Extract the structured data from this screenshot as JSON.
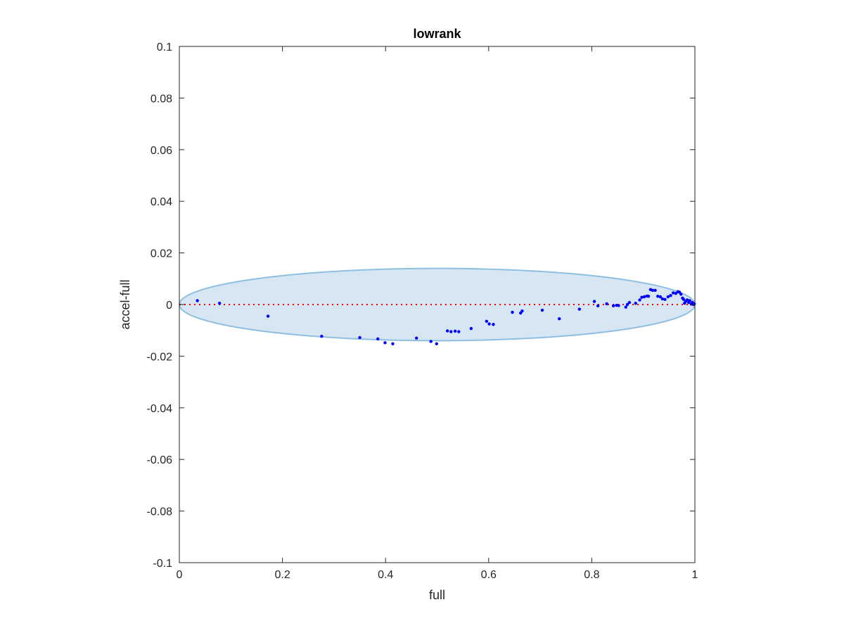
{
  "chart_data": {
    "type": "scatter",
    "title": "lowrank",
    "xlabel": "full",
    "ylabel": "accel-full",
    "xlim": [
      0,
      1
    ],
    "ylim": [
      -0.1,
      0.1
    ],
    "x_ticks": [
      0,
      0.2,
      0.4,
      0.6,
      0.8,
      1
    ],
    "x_tick_labels": [
      "0",
      "0.2",
      "0.4",
      "0.6",
      "0.8",
      "1"
    ],
    "y_ticks": [
      -0.1,
      -0.08,
      -0.06,
      -0.04,
      -0.02,
      0,
      0.02,
      0.04,
      0.06,
      0.08,
      0.1
    ],
    "y_tick_labels": [
      "-0.1",
      "-0.08",
      "-0.06",
      "-0.04",
      "-0.02",
      "0",
      "0.02",
      "0.04",
      "0.06",
      "0.08",
      "0.1"
    ],
    "grid": false,
    "legend": "none",
    "reference_line": {
      "y": 0,
      "style": "dotted",
      "color": "#ff0000"
    },
    "ellipse": {
      "cx": 0.5,
      "cy": 0.0,
      "rx": 0.5,
      "ry": 0.014,
      "fill": "#d6e6f3",
      "stroke": "#8fbfe0"
    },
    "series": [
      {
        "color": "#0000ff",
        "points": [
          [
            0.035,
            0.0015
          ],
          [
            0.078,
            0.0005
          ],
          [
            0.172,
            -0.0045
          ],
          [
            0.276,
            -0.0123
          ],
          [
            0.35,
            -0.0128
          ],
          [
            0.385,
            -0.0133
          ],
          [
            0.399,
            -0.0148
          ],
          [
            0.414,
            -0.0152
          ],
          [
            0.46,
            -0.013
          ],
          [
            0.488,
            -0.0143
          ],
          [
            0.499,
            -0.0152
          ],
          [
            0.52,
            -0.0102
          ],
          [
            0.527,
            -0.0105
          ],
          [
            0.535,
            -0.0103
          ],
          [
            0.542,
            -0.0105
          ],
          [
            0.566,
            -0.0093
          ],
          [
            0.596,
            -0.0065
          ],
          [
            0.601,
            -0.0075
          ],
          [
            0.609,
            -0.0077
          ],
          [
            0.646,
            -0.003
          ],
          [
            0.662,
            -0.0033
          ],
          [
            0.665,
            -0.0025
          ],
          [
            0.704,
            -0.0022
          ],
          [
            0.737,
            -0.0055
          ],
          [
            0.776,
            -0.0018
          ],
          [
            0.805,
            0.0012
          ],
          [
            0.812,
            -0.0005
          ],
          [
            0.829,
            0.0003
          ],
          [
            0.842,
            -0.0005
          ],
          [
            0.848,
            -0.0003
          ],
          [
            0.852,
            -0.0004
          ],
          [
            0.866,
            -0.001
          ],
          [
            0.869,
            0.0
          ],
          [
            0.873,
            0.0008
          ],
          [
            0.885,
            0.0005
          ],
          [
            0.893,
            0.0018
          ],
          [
            0.897,
            0.0028
          ],
          [
            0.902,
            0.003
          ],
          [
            0.907,
            0.0033
          ],
          [
            0.91,
            0.0032
          ],
          [
            0.914,
            0.0058
          ],
          [
            0.918,
            0.0055
          ],
          [
            0.923,
            0.0055
          ],
          [
            0.928,
            0.0032
          ],
          [
            0.933,
            0.003
          ],
          [
            0.937,
            0.0022
          ],
          [
            0.942,
            0.002
          ],
          [
            0.948,
            0.003
          ],
          [
            0.953,
            0.0035
          ],
          [
            0.958,
            0.0045
          ],
          [
            0.963,
            0.0043
          ],
          [
            0.967,
            0.005
          ],
          [
            0.97,
            0.0048
          ],
          [
            0.973,
            0.004
          ],
          [
            0.976,
            0.0025
          ],
          [
            0.978,
            0.002
          ],
          [
            0.98,
            0.0005
          ],
          [
            0.982,
            0.0012
          ],
          [
            0.985,
            0.0018
          ],
          [
            0.988,
            0.0008
          ],
          [
            0.99,
            0.0015
          ],
          [
            0.993,
            0.0002
          ],
          [
            0.995,
            0.0008
          ],
          [
            0.997,
            0.0
          ],
          [
            0.999,
            0.0003
          ]
        ]
      }
    ]
  }
}
